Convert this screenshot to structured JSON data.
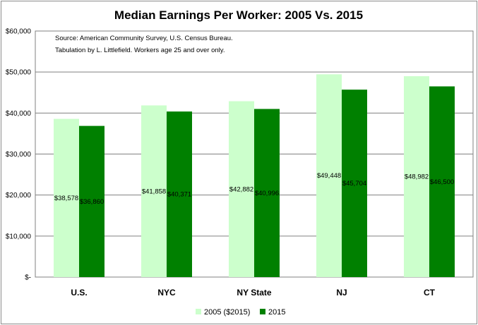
{
  "chart_data": {
    "type": "bar",
    "title": "Median Earnings Per Worker:  2005 Vs. 2015",
    "categories": [
      "U.S.",
      "NYC",
      "NY State",
      "NJ",
      "CT"
    ],
    "series": [
      {
        "name": "2005 ($2015)",
        "values": [
          38578,
          41858,
          42882,
          49448,
          48982
        ],
        "labels": [
          "$38,578",
          "$41,858",
          "$42,882",
          "$49,448",
          "$48,982"
        ],
        "color": "#ccffcc"
      },
      {
        "name": "2015",
        "values": [
          36860,
          40371,
          40996,
          45704,
          46500
        ],
        "labels": [
          "$36,860",
          "$40,371",
          "$40,996",
          "$45,704",
          "$46,500"
        ],
        "color": "#008000"
      }
    ],
    "ylim": [
      0,
      60000
    ],
    "yticks": [
      0,
      10000,
      20000,
      30000,
      40000,
      50000,
      60000
    ],
    "ytick_labels": [
      "$-",
      "$10,000",
      "$20,000",
      "$30,000",
      "$40,000",
      "$50,000",
      "$60,000"
    ],
    "grid": true,
    "legend_position": "bottom",
    "annotation_lines": [
      "Source:  American Community Survey, U.S. Census Bureau.",
      "Tabulation by L. Littlefield.  Workers age 25 and over only."
    ]
  }
}
